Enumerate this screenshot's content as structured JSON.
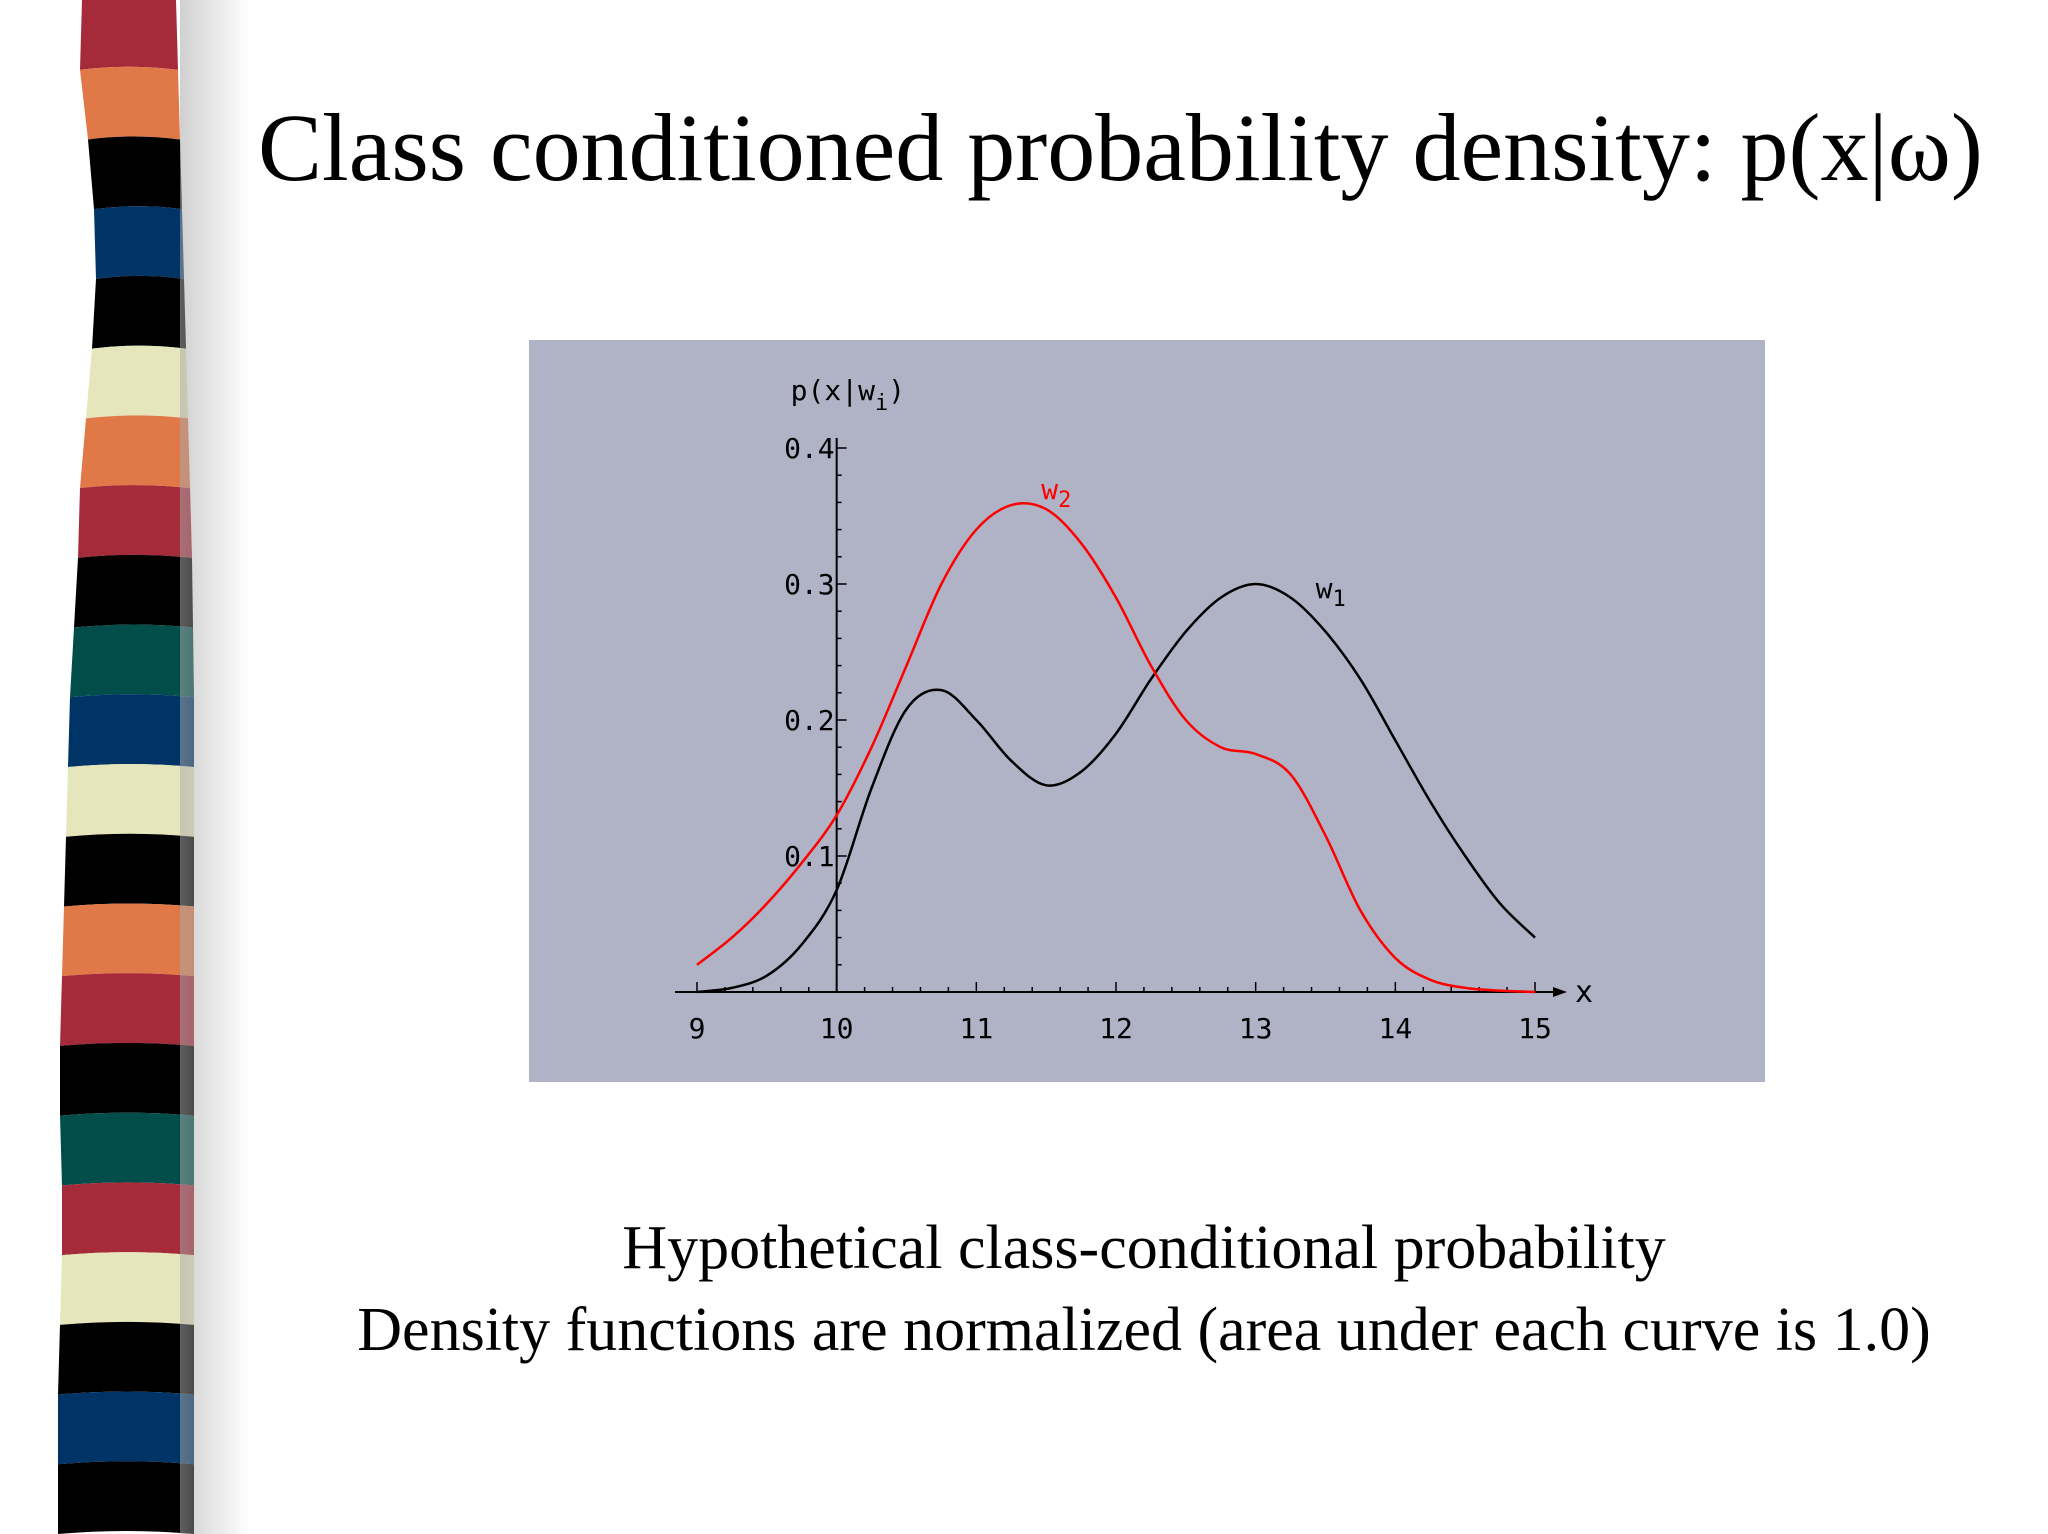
{
  "slide": {
    "title": "Class conditioned probability density: p(x|ω)",
    "caption_line_1": "Hypothetical class-conditional probability",
    "caption_line_2": "Density functions are normalized (area under each curve is 1.0)"
  },
  "colors": {
    "panel_background": "#b0b2c6",
    "w1_curve": "#000000",
    "w2_curve": "#ff0000",
    "stripes": [
      "#a52a3a",
      "#e07848",
      "#000000",
      "#003366",
      "#000000",
      "#e6e6bc",
      "#e07848",
      "#a52a3a",
      "#000000",
      "#004d4a",
      "#003366",
      "#e6e6bc",
      "#000000",
      "#e07848",
      "#a52a3a",
      "#000000",
      "#004d4a",
      "#a52a3a",
      "#e6e6bc",
      "#000000",
      "#003366",
      "#000000"
    ]
  },
  "chart_data": {
    "type": "line",
    "title": "",
    "xlabel": "x",
    "ylabel": "p(x|w",
    "ylabel_subscript": "i",
    "ylabel_suffix": ")",
    "xlim": [
      9,
      15
    ],
    "ylim": [
      0,
      0.4
    ],
    "x_ticks": [
      "9",
      "10",
      "11",
      "12",
      "13",
      "14",
      "15"
    ],
    "y_ticks": [
      "0.1",
      "0.2",
      "0.3",
      "0.4"
    ],
    "grid": false,
    "series": [
      {
        "name": "w",
        "subscript": "1",
        "color": "#000000",
        "x": [
          9.0,
          9.25,
          9.5,
          9.75,
          10.0,
          10.25,
          10.5,
          10.75,
          11.0,
          11.25,
          11.5,
          11.75,
          12.0,
          12.25,
          12.5,
          12.75,
          13.0,
          13.25,
          13.5,
          13.75,
          14.0,
          14.25,
          14.5,
          14.75,
          15.0
        ],
        "y": [
          0.0,
          0.003,
          0.012,
          0.035,
          0.075,
          0.15,
          0.208,
          0.222,
          0.2,
          0.17,
          0.152,
          0.162,
          0.19,
          0.23,
          0.265,
          0.29,
          0.3,
          0.29,
          0.265,
          0.23,
          0.185,
          0.14,
          0.1,
          0.065,
          0.04
        ]
      },
      {
        "name": "w",
        "subscript": "2",
        "color": "#ff0000",
        "x": [
          9.0,
          9.25,
          9.5,
          9.75,
          10.0,
          10.25,
          10.5,
          10.75,
          11.0,
          11.25,
          11.5,
          11.75,
          12.0,
          12.25,
          12.5,
          12.75,
          13.0,
          13.25,
          13.5,
          13.75,
          14.0,
          14.25,
          14.5,
          14.75,
          15.0
        ],
        "y": [
          0.02,
          0.04,
          0.065,
          0.095,
          0.13,
          0.18,
          0.24,
          0.3,
          0.34,
          0.358,
          0.355,
          0.33,
          0.29,
          0.24,
          0.2,
          0.18,
          0.175,
          0.16,
          0.115,
          0.06,
          0.025,
          0.009,
          0.003,
          0.001,
          0.0
        ]
      }
    ]
  }
}
